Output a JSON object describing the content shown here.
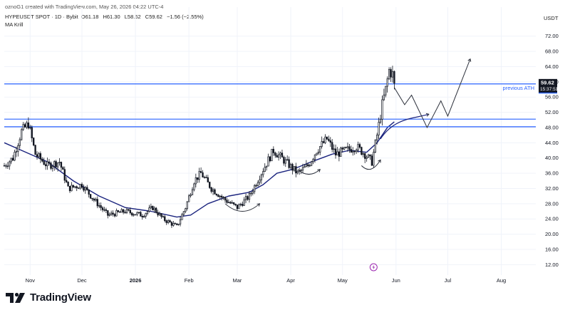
{
  "header": {
    "credit": "oznoG1 created with TradingView.com, May 26, 2026 04:22 UTC-4",
    "symbol": "HYPEUSDT SPOT · 1D · Bybit",
    "ohlc": {
      "open": "O61.18",
      "high": "H61.30",
      "low": "L58.62",
      "close": "C59.62",
      "change": "−1.56 (−2.55%)"
    },
    "indicator": "MA Krill"
  },
  "axis": {
    "currency": "USDT"
  },
  "brand": {
    "name": "TradingView"
  },
  "colors": {
    "up": "#131722",
    "down": "#131722",
    "ma": "#1a237e",
    "hline": "#2962ff",
    "price_label_bg": "#131722",
    "level_label_bg": "#2962ff",
    "annotation": "#2a2e39",
    "grid": "#f0f3fa"
  },
  "chart_data": {
    "type": "candlestick",
    "x_axis": {
      "labels": [
        "Nov",
        "Dec",
        "2026",
        "Feb",
        "Mar",
        "Apr",
        "May",
        "Jun",
        "Jul",
        "Aug"
      ],
      "days": [
        15,
        45,
        76,
        107,
        135,
        166,
        196,
        227,
        257,
        288
      ],
      "range_days": [
        0,
        308
      ]
    },
    "y_axis": {
      "ticks": [
        "72.00",
        "68.00",
        "64.00",
        "60.00",
        "56.00",
        "52.00",
        "48.00",
        "44.00",
        "40.00",
        "36.00",
        "32.00",
        "28.00",
        "24.00",
        "20.00",
        "16.00",
        "12.00"
      ],
      "range": [
        10,
        74
      ],
      "position": "right"
    },
    "anchors": [
      {
        "day": 0,
        "price": 38
      },
      {
        "day": 5,
        "price": 40
      },
      {
        "day": 10,
        "price": 47
      },
      {
        "day": 14,
        "price": 49
      },
      {
        "day": 18,
        "price": 41
      },
      {
        "day": 25,
        "price": 38
      },
      {
        "day": 32,
        "price": 39
      },
      {
        "day": 37,
        "price": 32
      },
      {
        "day": 45,
        "price": 33
      },
      {
        "day": 52,
        "price": 29
      },
      {
        "day": 60,
        "price": 25
      },
      {
        "day": 70,
        "price": 26
      },
      {
        "day": 80,
        "price": 25
      },
      {
        "day": 86,
        "price": 27
      },
      {
        "day": 92,
        "price": 24
      },
      {
        "day": 100,
        "price": 22
      },
      {
        "day": 105,
        "price": 27
      },
      {
        "day": 110,
        "price": 34
      },
      {
        "day": 114,
        "price": 36
      },
      {
        "day": 120,
        "price": 32
      },
      {
        "day": 128,
        "price": 29
      },
      {
        "day": 135,
        "price": 27
      },
      {
        "day": 142,
        "price": 30
      },
      {
        "day": 150,
        "price": 37
      },
      {
        "day": 156,
        "price": 42
      },
      {
        "day": 163,
        "price": 39
      },
      {
        "day": 170,
        "price": 36
      },
      {
        "day": 176,
        "price": 38
      },
      {
        "day": 181,
        "price": 42
      },
      {
        "day": 187,
        "price": 45
      },
      {
        "day": 192,
        "price": 41
      },
      {
        "day": 198,
        "price": 42
      },
      {
        "day": 204,
        "price": 43
      },
      {
        "day": 209,
        "price": 41
      },
      {
        "day": 213,
        "price": 39
      },
      {
        "day": 216,
        "price": 46
      },
      {
        "day": 219,
        "price": 54
      },
      {
        "day": 221,
        "price": 58
      },
      {
        "day": 223,
        "price": 63
      },
      {
        "day": 225,
        "price": 62
      },
      {
        "day": 226,
        "price": 59.62
      }
    ],
    "ma_line": [
      {
        "day": 0,
        "price": 44
      },
      {
        "day": 10,
        "price": 42
      },
      {
        "day": 25,
        "price": 39
      },
      {
        "day": 40,
        "price": 34
      },
      {
        "day": 55,
        "price": 30
      },
      {
        "day": 70,
        "price": 27
      },
      {
        "day": 85,
        "price": 26
      },
      {
        "day": 100,
        "price": 24.5
      },
      {
        "day": 108,
        "price": 25
      },
      {
        "day": 118,
        "price": 28
      },
      {
        "day": 130,
        "price": 30
      },
      {
        "day": 142,
        "price": 31
      },
      {
        "day": 150,
        "price": 33
      },
      {
        "day": 158,
        "price": 36
      },
      {
        "day": 167,
        "price": 37
      },
      {
        "day": 178,
        "price": 39
      },
      {
        "day": 190,
        "price": 41
      },
      {
        "day": 200,
        "price": 42
      },
      {
        "day": 210,
        "price": 41.5
      },
      {
        "day": 216,
        "price": 44
      },
      {
        "day": 222,
        "price": 48
      },
      {
        "day": 226,
        "price": 49.5
      }
    ],
    "horizontal_levels": [
      {
        "price": 59.45,
        "label": "59.45",
        "text": "previous ATH"
      },
      {
        "price": 50.2,
        "label": ""
      },
      {
        "price": 48.2,
        "label": ""
      }
    ],
    "last_price": {
      "price": 59.62,
      "label": "59.62",
      "countdown": "15:37:51"
    },
    "annotations": {
      "arcs": [
        {
          "from": [
            128,
            28
          ],
          "to": [
            148,
            28
          ],
          "depth": 2.5
        },
        {
          "from": [
            170,
            37
          ],
          "to": [
            183,
            37
          ],
          "depth": 1.6
        },
        {
          "from": [
            207,
            38
          ],
          "to": [
            218,
            39.5
          ],
          "depth": 1.6
        }
      ],
      "curve": {
        "from": [
          218,
          45
        ],
        "to": [
          246,
          51.5
        ]
      },
      "projection": [
        [
          226,
          58.5
        ],
        [
          232,
          54
        ],
        [
          236,
          56.5
        ],
        [
          245,
          48
        ],
        [
          253,
          55
        ],
        [
          257,
          51
        ],
        [
          270,
          66
        ]
      ]
    }
  }
}
